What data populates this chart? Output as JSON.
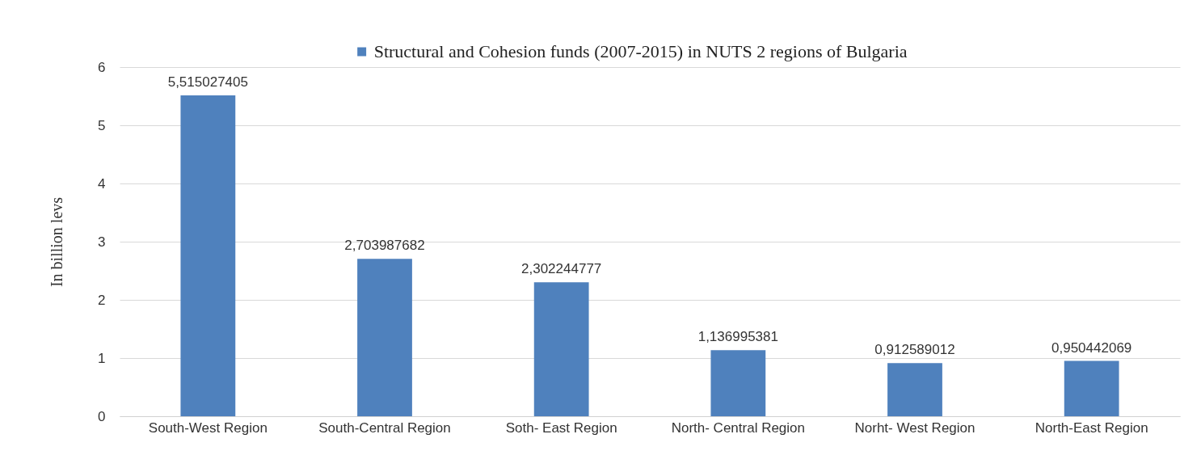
{
  "chart_data": {
    "type": "bar",
    "ylabel": "In billion levs",
    "categories": [
      "South-West Region",
      "South-Central Region",
      "Soth- East Region",
      "North- Central Region",
      "Norht- West Region",
      "North-East Region"
    ],
    "series": [
      {
        "name": "Structural and Cohesion funds (2007-2015) in NUTS 2 regions of Bulgaria",
        "color": "#4f81bd",
        "values": [
          5.515027405,
          2.703987682,
          2.302244777,
          1.136995381,
          0.912589012,
          0.950442069
        ],
        "value_labels": [
          "5,515027405",
          "2,703987682",
          "2,302244777",
          "1,136995381",
          "0,912589012",
          "0,950442069"
        ]
      }
    ],
    "ylim": [
      0,
      6
    ],
    "yticks": [
      0,
      1,
      2,
      3,
      4,
      5,
      6
    ],
    "grid": "y",
    "legend": "top"
  }
}
